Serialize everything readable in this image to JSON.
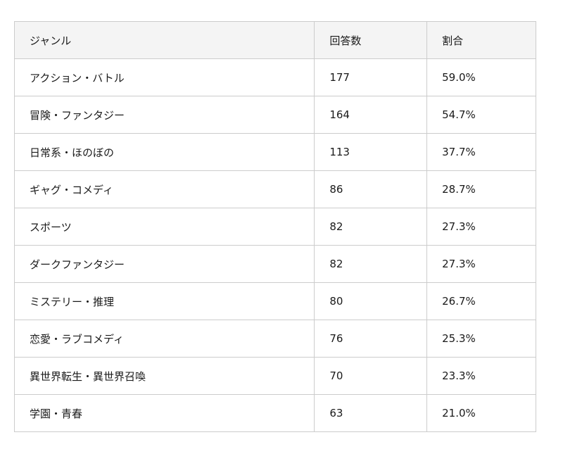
{
  "table": {
    "headers": [
      "ジャンル",
      "回答数",
      "割合"
    ],
    "rows": [
      [
        "アクション・バトル",
        "177",
        "59.0%"
      ],
      [
        "冒険・ファンタジー",
        "164",
        "54.7%"
      ],
      [
        "日常系・ほのぼの",
        "113",
        "37.7%"
      ],
      [
        "ギャグ・コメディ",
        "86",
        "28.7%"
      ],
      [
        "スポーツ",
        "82",
        "27.3%"
      ],
      [
        "ダークファンタジー",
        "82",
        "27.3%"
      ],
      [
        "ミステリー・推理",
        "80",
        "26.7%"
      ],
      [
        "恋愛・ラブコメディ",
        "76",
        "25.3%"
      ],
      [
        "異世界転生・異世界召喚",
        "70",
        "23.3%"
      ],
      [
        "学園・青春",
        "63",
        "21.0%"
      ]
    ],
    "header_bg": "#f4f4f4",
    "border_color": "#cccccc"
  }
}
